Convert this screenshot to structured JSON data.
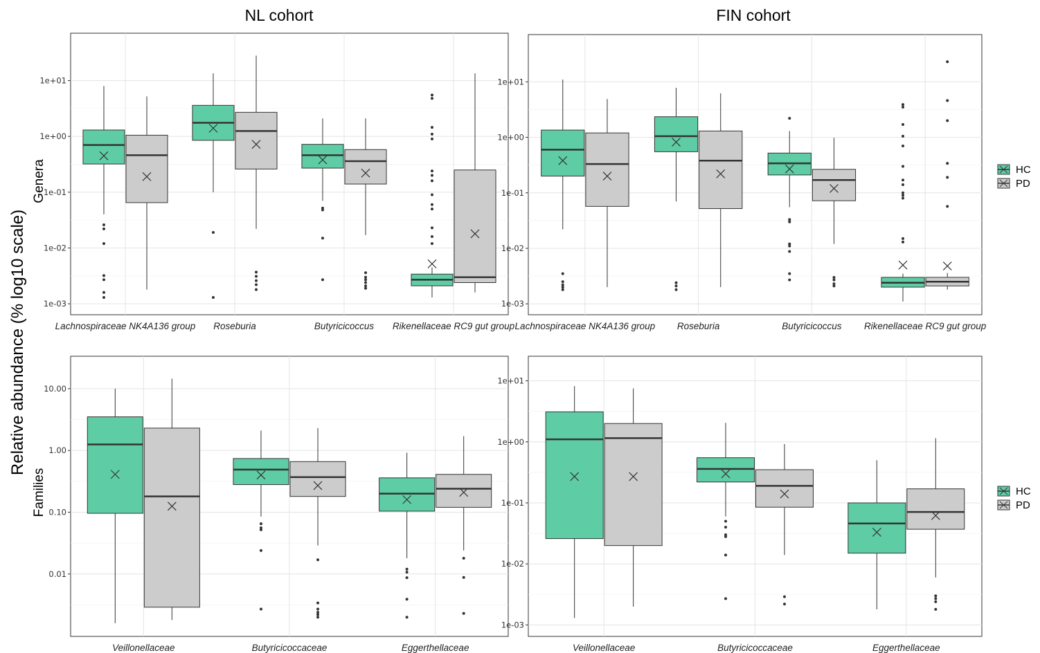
{
  "figure": {
    "y_axis_label": "Relative abundance (% log10 scale)",
    "column_titles": [
      "NL cohort",
      "FIN cohort"
    ],
    "row_labels": [
      "Genera",
      "Families"
    ]
  },
  "legend": {
    "entries": [
      {
        "name": "HC",
        "color": "#5ecda6"
      },
      {
        "name": "PD",
        "color": "#cccccc"
      }
    ]
  },
  "chart_data": [
    {
      "type": "box",
      "panel": "NL cohort - Genera",
      "scale": "log10",
      "ylim": [
        0.0008,
        30
      ],
      "yticks": [
        0.001,
        0.01,
        0.1,
        1,
        10
      ],
      "ytick_labels": [
        "1e-03",
        "1e-02",
        "1e-01",
        "1e+00",
        "1e+01"
      ],
      "categories": [
        "Lachnospiraceae NK4A136 group",
        "Roseburia",
        "Butyricicoccus",
        "Rikenellaceae RC9 gut group"
      ],
      "series": [
        {
          "name": "HC",
          "color": "#5ecda6",
          "boxes": [
            {
              "lo": 0.04,
              "q1": 0.32,
              "med": 0.7,
              "q3": 1.3,
              "hi": 8,
              "mean": 0.45,
              "out": [
                0.026,
                0.022,
                0.012,
                0.0032,
                0.0027,
                0.0016,
                0.0013
              ]
            },
            {
              "lo": 0.1,
              "q1": 0.85,
              "med": 1.75,
              "q3": 3.6,
              "hi": 13.5,
              "mean": 1.4,
              "out": [
                0.019,
                0.0013
              ]
            },
            {
              "lo": 0.07,
              "q1": 0.27,
              "med": 0.46,
              "q3": 0.72,
              "hi": 2.1,
              "mean": 0.38,
              "out": [
                0.052,
                0.048,
                0.015,
                0.0027
              ]
            },
            {
              "lo": 0.0013,
              "q1": 0.0021,
              "med": 0.0027,
              "q3": 0.0034,
              "hi": 0.0045,
              "mean": 0.0052,
              "out": [
                5.5,
                4.8,
                1.45,
                1.1,
                0.9,
                0.24,
                0.2,
                0.16,
                0.09,
                0.06,
                0.05,
                0.023,
                0.016,
                0.012
              ]
            }
          ]
        },
        {
          "name": "PD",
          "color": "#cccccc",
          "boxes": [
            {
              "lo": 0.0018,
              "q1": 0.065,
              "med": 0.46,
              "q3": 1.05,
              "hi": 5.2,
              "mean": 0.19,
              "out": []
            },
            {
              "lo": 0.022,
              "q1": 0.26,
              "med": 1.25,
              "q3": 2.7,
              "hi": 28,
              "mean": 0.72,
              "out": [
                0.0037,
                0.0031,
                0.0026,
                0.0022,
                0.0018
              ]
            },
            {
              "lo": 0.017,
              "q1": 0.14,
              "med": 0.36,
              "q3": 0.58,
              "hi": 2.1,
              "mean": 0.22,
              "out": [
                0.0036,
                0.003,
                0.0027,
                0.0024,
                0.0021,
                0.0019
              ]
            },
            {
              "lo": 0.0016,
              "q1": 0.0024,
              "med": 0.003,
              "q3": 0.25,
              "hi": 13.5,
              "mean": 0.018,
              "out": []
            }
          ]
        }
      ]
    },
    {
      "type": "box",
      "panel": "FIN cohort - Genera",
      "scale": "log10",
      "ylim": [
        0.0008,
        30
      ],
      "yticks": [
        0.001,
        0.01,
        0.1,
        1,
        10
      ],
      "ytick_labels": [
        "1e-03",
        "1e-02",
        "1e-01",
        "1e+00",
        "1e+01"
      ],
      "categories": [
        "Lachnospiraceae NK4A136 group",
        "Roseburia",
        "Butyricicoccus",
        "Rikenellaceae RC9 gut group"
      ],
      "series": [
        {
          "name": "HC",
          "color": "#5ecda6",
          "boxes": [
            {
              "lo": 0.022,
              "q1": 0.2,
              "med": 0.6,
              "q3": 1.35,
              "hi": 11,
              "mean": 0.38,
              "out": [
                0.0035,
                0.0025,
                0.0022,
                0.002,
                0.0018
              ]
            },
            {
              "lo": 0.07,
              "q1": 0.55,
              "med": 1.05,
              "q3": 2.35,
              "hi": 7.8,
              "mean": 0.82,
              "out": [
                0.0024,
                0.0021,
                0.0018
              ]
            },
            {
              "lo": 0.055,
              "q1": 0.21,
              "med": 0.34,
              "q3": 0.52,
              "hi": 1.3,
              "mean": 0.27,
              "out": [
                2.2,
                0.033,
                0.03,
                0.012,
                0.011,
                0.0088,
                0.0035,
                0.0027
              ]
            },
            {
              "lo": 0.0011,
              "q1": 0.002,
              "med": 0.0024,
              "q3": 0.003,
              "hi": 0.0035,
              "mean": 0.005,
              "out": [
                3.9,
                3.5,
                1.7,
                1.05,
                0.7,
                0.3,
                0.17,
                0.14,
                0.1,
                0.09,
                0.08,
                0.015,
                0.013
              ]
            }
          ]
        },
        {
          "name": "PD",
          "color": "#cccccc",
          "boxes": [
            {
              "lo": 0.002,
              "q1": 0.057,
              "med": 0.33,
              "q3": 1.2,
              "hi": 4.9,
              "mean": 0.2,
              "out": []
            },
            {
              "lo": 0.002,
              "q1": 0.052,
              "med": 0.38,
              "q3": 1.3,
              "hi": 6.2,
              "mean": 0.22,
              "out": []
            },
            {
              "lo": 0.012,
              "q1": 0.072,
              "med": 0.17,
              "q3": 0.265,
              "hi": 0.98,
              "mean": 0.12,
              "out": [
                0.003,
                0.0027,
                0.0023,
                0.0021
              ]
            },
            {
              "lo": 0.0018,
              "q1": 0.0021,
              "med": 0.0025,
              "q3": 0.003,
              "hi": 0.0036,
              "mean": 0.0048,
              "out": [
                23,
                4.6,
                2.0,
                0.34,
                0.19,
                0.057
              ]
            }
          ]
        }
      ]
    },
    {
      "type": "box",
      "panel": "NL cohort - Families",
      "scale": "log10",
      "ylim": [
        0.0012,
        20
      ],
      "yticks": [
        0.01,
        0.1,
        1,
        10
      ],
      "ytick_labels": [
        "0.01",
        "0.10",
        "1.00",
        "10.00"
      ],
      "categories": [
        "Veillonellaceae",
        "Butyricicoccaceae",
        "Eggerthellaceae"
      ],
      "series": [
        {
          "name": "HC",
          "color": "#5ecda6",
          "boxes": [
            {
              "lo": 0.0016,
              "q1": 0.096,
              "med": 1.25,
              "q3": 3.5,
              "hi": 10,
              "mean": 0.41,
              "out": []
            },
            {
              "lo": 0.085,
              "q1": 0.28,
              "med": 0.49,
              "q3": 0.74,
              "hi": 2.1,
              "mean": 0.4,
              "out": [
                0.065,
                0.056,
                0.052,
                0.024,
                0.0027
              ]
            },
            {
              "lo": 0.018,
              "q1": 0.104,
              "med": 0.2,
              "q3": 0.36,
              "hi": 0.92,
              "mean": 0.16,
              "out": [
                0.012,
                0.0107,
                0.0087,
                0.0039,
                0.002
              ]
            }
          ]
        },
        {
          "name": "PD",
          "color": "#cccccc",
          "boxes": [
            {
              "lo": 0.0018,
              "q1": 0.0029,
              "med": 0.18,
              "q3": 2.3,
              "hi": 14.5,
              "mean": 0.125,
              "out": []
            },
            {
              "lo": 0.029,
              "q1": 0.18,
              "med": 0.37,
              "q3": 0.66,
              "hi": 2.3,
              "mean": 0.27,
              "out": [
                0.017,
                0.0034,
                0.0027,
                0.0024,
                0.0022,
                0.002
              ]
            },
            {
              "lo": 0.024,
              "q1": 0.12,
              "med": 0.24,
              "q3": 0.41,
              "hi": 1.7,
              "mean": 0.21,
              "out": [
                0.018,
                0.0088,
                0.0023
              ]
            }
          ]
        }
      ]
    },
    {
      "type": "box",
      "panel": "FIN cohort - Families",
      "scale": "log10",
      "ylim": [
        0.0008,
        15
      ],
      "yticks": [
        0.001,
        0.01,
        0.1,
        1,
        10
      ],
      "ytick_labels": [
        "1e-03",
        "1e-02",
        "1e-01",
        "1e+00",
        "1e+01"
      ],
      "categories": [
        "Veillonellaceae",
        "Butyricicoccaceae",
        "Eggerthellaceae"
      ],
      "series": [
        {
          "name": "HC",
          "color": "#5ecda6",
          "boxes": [
            {
              "lo": 0.0013,
              "q1": 0.026,
              "med": 1.1,
              "q3": 3.1,
              "hi": 8.2,
              "mean": 0.27,
              "out": []
            },
            {
              "lo": 0.06,
              "q1": 0.22,
              "med": 0.36,
              "q3": 0.55,
              "hi": 2.05,
              "mean": 0.3,
              "out": [
                0.05,
                0.04,
                0.03,
                0.028,
                0.014,
                0.0027
              ]
            },
            {
              "lo": 0.0018,
              "q1": 0.015,
              "med": 0.046,
              "q3": 0.1,
              "hi": 0.5,
              "mean": 0.033,
              "out": []
            }
          ]
        },
        {
          "name": "PD",
          "color": "#cccccc",
          "boxes": [
            {
              "lo": 0.002,
              "q1": 0.02,
              "med": 1.15,
              "q3": 2.0,
              "hi": 7.5,
              "mean": 0.27,
              "out": []
            },
            {
              "lo": 0.014,
              "q1": 0.085,
              "med": 0.19,
              "q3": 0.35,
              "hi": 0.92,
              "mean": 0.14,
              "out": [
                0.0029,
                0.0022
              ]
            },
            {
              "lo": 0.006,
              "q1": 0.037,
              "med": 0.071,
              "q3": 0.17,
              "hi": 1.15,
              "mean": 0.062,
              "out": [
                0.003,
                0.0027,
                0.0024,
                0.0018
              ]
            }
          ]
        }
      ]
    }
  ]
}
